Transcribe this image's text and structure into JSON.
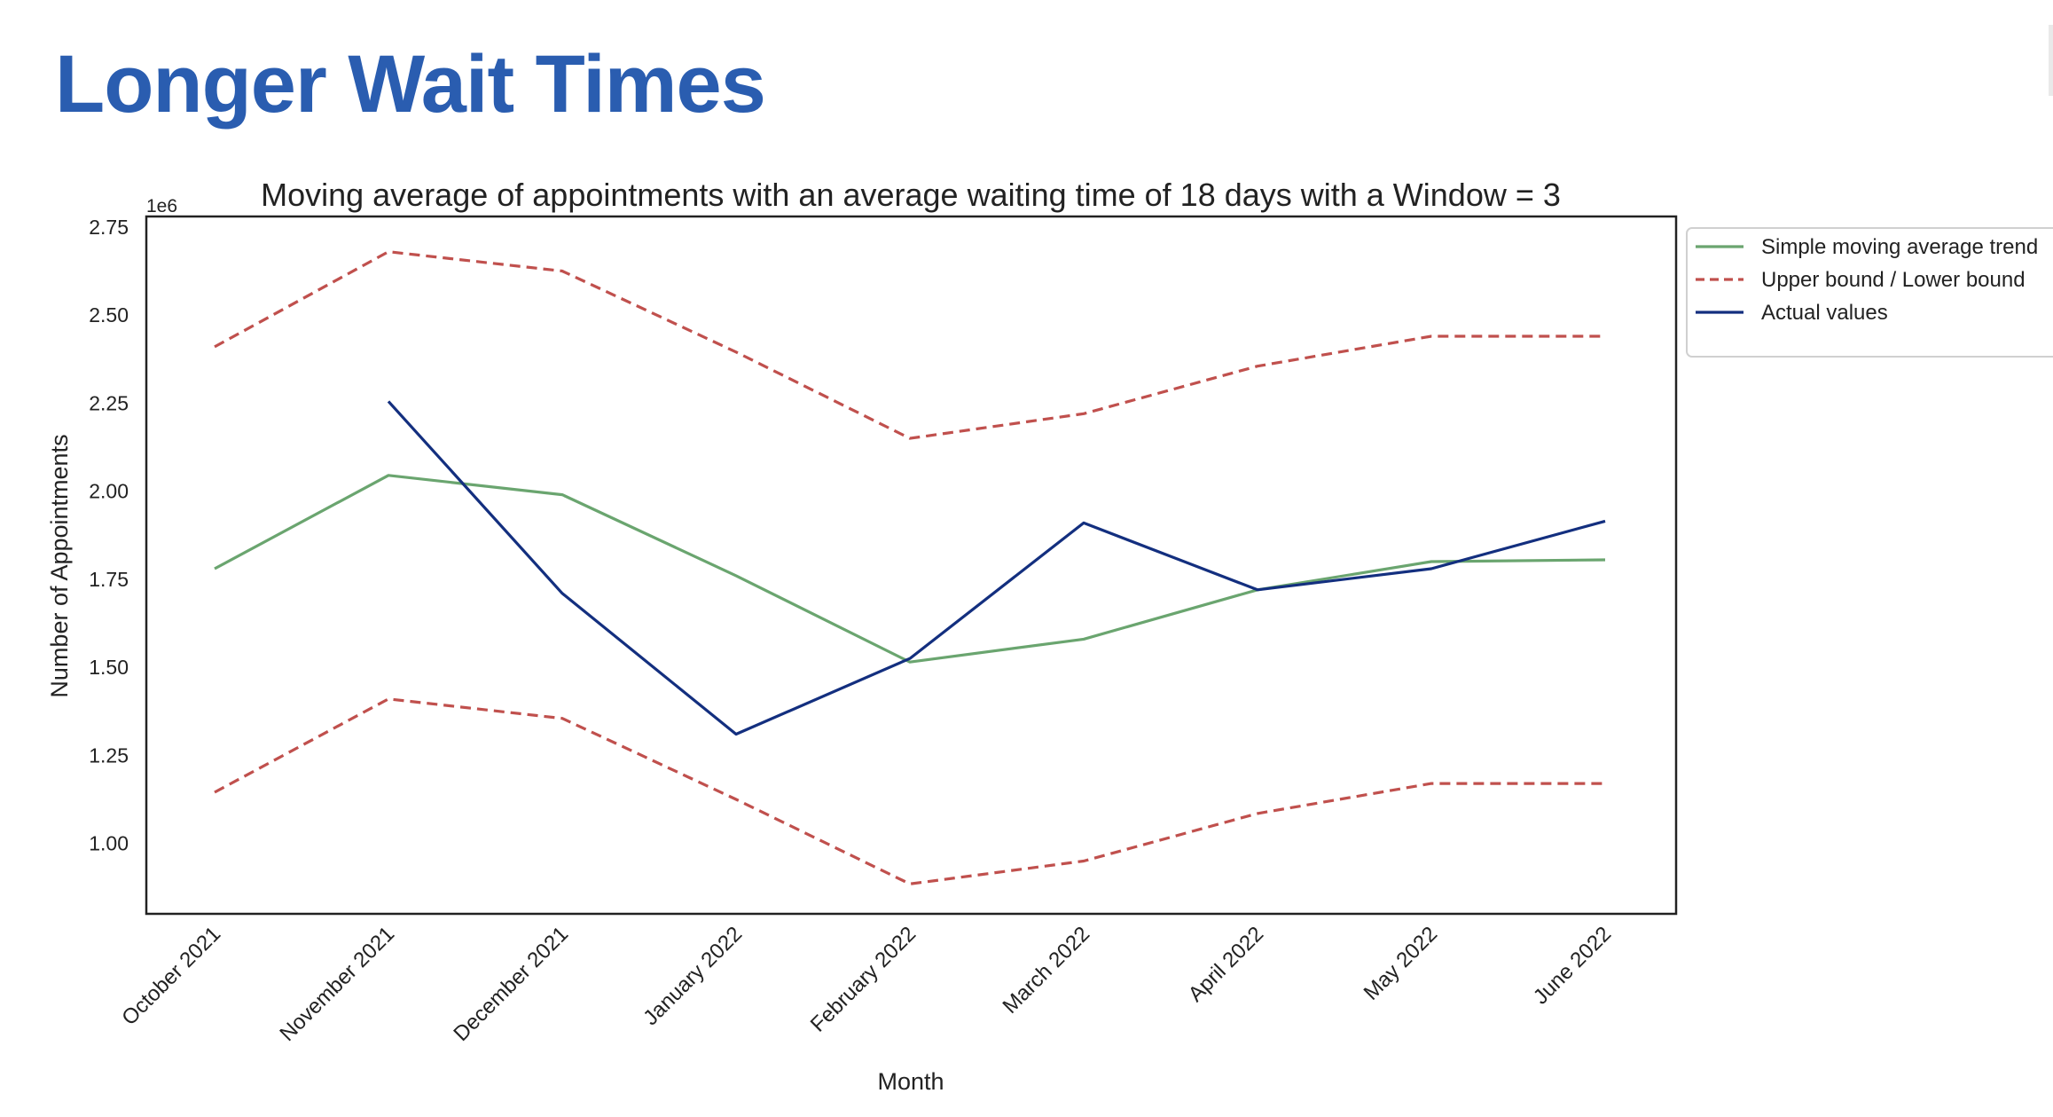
{
  "slide": {
    "title": "Longer Wait Times"
  },
  "chart_data": {
    "type": "line",
    "title": "Moving average of appointments with an average waiting time of 18 days with a Window = 3",
    "xlabel": "Month",
    "ylabel": "Number of Appointments",
    "y_multiplier_label": "1e6",
    "ylim": [
      0.8,
      2.78
    ],
    "yticks": [
      1.0,
      1.25,
      1.5,
      1.75,
      2.0,
      2.25,
      2.5,
      2.75
    ],
    "ytick_labels": [
      "1.00",
      "1.25",
      "1.50",
      "1.75",
      "2.00",
      "2.25",
      "2.50",
      "2.75"
    ],
    "categories": [
      "October 2021",
      "November 2021",
      "December 2021",
      "January 2022",
      "February 2022",
      "March 2022",
      "April 2022",
      "May 2022",
      "June 2022"
    ],
    "series": [
      {
        "name": "Simple moving average trend",
        "color": "#6aa56f",
        "dash": "solid",
        "values": [
          1.78,
          2.045,
          1.99,
          1.76,
          1.515,
          1.58,
          1.72,
          1.8,
          1.805
        ]
      },
      {
        "name": "Upper bound / Lower bound",
        "color": "#c0504d",
        "dash": "dashed",
        "values": [
          2.41,
          2.68,
          2.625,
          2.395,
          2.15,
          2.22,
          2.355,
          2.44,
          2.44
        ]
      },
      {
        "name": "",
        "legend": false,
        "color": "#c0504d",
        "dash": "dashed",
        "values": [
          1.145,
          1.41,
          1.355,
          1.125,
          0.885,
          0.95,
          1.085,
          1.17,
          1.17
        ]
      },
      {
        "name": "Actual values",
        "color": "#132f7f",
        "dash": "solid",
        "values": [
          null,
          2.255,
          1.71,
          1.31,
          1.525,
          1.91,
          1.72,
          1.78,
          1.915
        ]
      }
    ],
    "grid": false,
    "legend_position": "outside-top-right"
  }
}
